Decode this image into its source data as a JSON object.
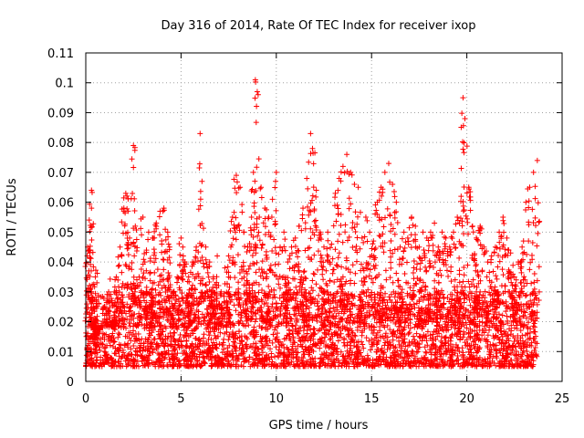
{
  "chart_data": {
    "type": "scatter",
    "title": "Day 316 of 2014, Rate Of TEC Index for receiver ixop",
    "xlabel": "GPS time / hours",
    "ylabel": "ROTI / TECUs",
    "xlim": [
      0,
      25
    ],
    "ylim": [
      0,
      0.11
    ],
    "xticks": [
      0,
      5,
      10,
      15,
      20,
      25
    ],
    "xtick_labels": [
      "0",
      "5",
      "10",
      "15",
      "20",
      "25"
    ],
    "yticks": [
      0,
      0.01,
      0.02,
      0.03,
      0.04,
      0.05,
      0.06,
      0.07,
      0.08,
      0.09,
      0.1,
      0.11
    ],
    "ytick_labels": [
      "0",
      "0.01",
      "0.02",
      "0.03",
      "0.04",
      "0.05",
      "0.06",
      "0.07",
      "0.08",
      "0.09",
      "0.1",
      "0.11"
    ],
    "grid": true,
    "marker": "plus",
    "color": "#ff0000",
    "series": [
      {
        "name": "ROTI",
        "x": [
          0.1,
          0.2,
          0.3,
          0.3,
          0.4,
          0.5,
          0.6,
          0.8,
          1.0,
          1.2,
          1.4,
          1.6,
          1.8,
          2.0,
          2.1,
          2.3,
          2.5,
          2.6,
          2.8,
          3.0,
          3.1,
          3.3,
          3.5,
          3.7,
          3.9,
          4.1,
          4.3,
          4.4,
          4.6,
          4.8,
          5.0,
          5.2,
          5.4,
          5.6,
          5.8,
          6.0,
          6.1,
          6.3,
          6.5,
          6.7,
          6.9,
          7.1,
          7.3,
          7.5,
          7.7,
          7.9,
          8.1,
          8.3,
          8.5,
          8.7,
          8.8,
          8.9,
          9.0,
          9.2,
          9.4,
          9.6,
          9.8,
          10.0,
          10.2,
          10.4,
          10.6,
          10.8,
          11.0,
          11.2,
          11.4,
          11.6,
          11.8,
          11.9,
          12.1,
          12.3,
          12.5,
          12.7,
          12.9,
          13.1,
          13.3,
          13.5,
          13.7,
          13.9,
          14.1,
          14.3,
          14.5,
          14.7,
          14.9,
          15.1,
          15.3,
          15.5,
          15.7,
          15.9,
          16.1,
          16.3,
          16.5,
          16.7,
          16.9,
          17.1,
          17.3,
          17.5,
          17.7,
          17.9,
          18.1,
          18.3,
          18.5,
          18.7,
          18.9,
          19.1,
          19.3,
          19.5,
          19.7,
          19.8,
          19.9,
          20.1,
          20.3,
          20.5,
          20.7,
          20.9,
          21.1,
          21.3,
          21.5,
          21.7,
          21.9,
          22.1,
          22.3,
          22.5,
          22.7,
          22.9,
          23.1,
          23.3,
          23.5,
          23.7,
          0.5,
          1.5,
          2.5,
          3.5,
          4.5,
          5.5,
          6.5,
          7.5,
          8.5,
          9.5,
          10.5,
          11.5,
          12.5,
          13.5,
          14.5,
          15.5,
          16.5,
          17.5,
          18.5,
          19.5,
          20.5,
          21.5,
          22.5,
          23.5
        ],
        "y": [
          0.045,
          0.044,
          0.064,
          0.058,
          0.02,
          0.015,
          0.012,
          0.018,
          0.025,
          0.03,
          0.02,
          0.035,
          0.045,
          0.058,
          0.063,
          0.048,
          0.079,
          0.052,
          0.035,
          0.055,
          0.04,
          0.05,
          0.048,
          0.053,
          0.057,
          0.058,
          0.05,
          0.045,
          0.03,
          0.035,
          0.048,
          0.04,
          0.035,
          0.04,
          0.045,
          0.083,
          0.067,
          0.045,
          0.04,
          0.035,
          0.042,
          0.03,
          0.038,
          0.042,
          0.055,
          0.069,
          0.065,
          0.05,
          0.045,
          0.055,
          0.07,
          0.101,
          0.097,
          0.065,
          0.058,
          0.055,
          0.061,
          0.07,
          0.045,
          0.05,
          0.04,
          0.045,
          0.048,
          0.052,
          0.058,
          0.068,
          0.083,
          0.078,
          0.064,
          0.05,
          0.045,
          0.05,
          0.046,
          0.063,
          0.068,
          0.072,
          0.076,
          0.07,
          0.066,
          0.065,
          0.048,
          0.055,
          0.05,
          0.047,
          0.06,
          0.065,
          0.07,
          0.073,
          0.066,
          0.06,
          0.045,
          0.05,
          0.048,
          0.055,
          0.052,
          0.045,
          0.05,
          0.048,
          0.05,
          0.053,
          0.045,
          0.05,
          0.048,
          0.045,
          0.05,
          0.055,
          0.062,
          0.095,
          0.088,
          0.065,
          0.052,
          0.048,
          0.052,
          0.045,
          0.04,
          0.042,
          0.045,
          0.05,
          0.055,
          0.048,
          0.043,
          0.035,
          0.04,
          0.045,
          0.06,
          0.065,
          0.07,
          0.074,
          0.035,
          0.03,
          0.032,
          0.028,
          0.03,
          0.025,
          0.027,
          0.03,
          0.033,
          0.035,
          0.03,
          0.028,
          0.03,
          0.035,
          0.03,
          0.032,
          0.028,
          0.03,
          0.03,
          0.028,
          0.03,
          0.03,
          0.028,
          0.03
        ]
      }
    ],
    "dense_band": {
      "ymin": 0.005,
      "ymax": 0.03,
      "typical": 0.012
    }
  }
}
